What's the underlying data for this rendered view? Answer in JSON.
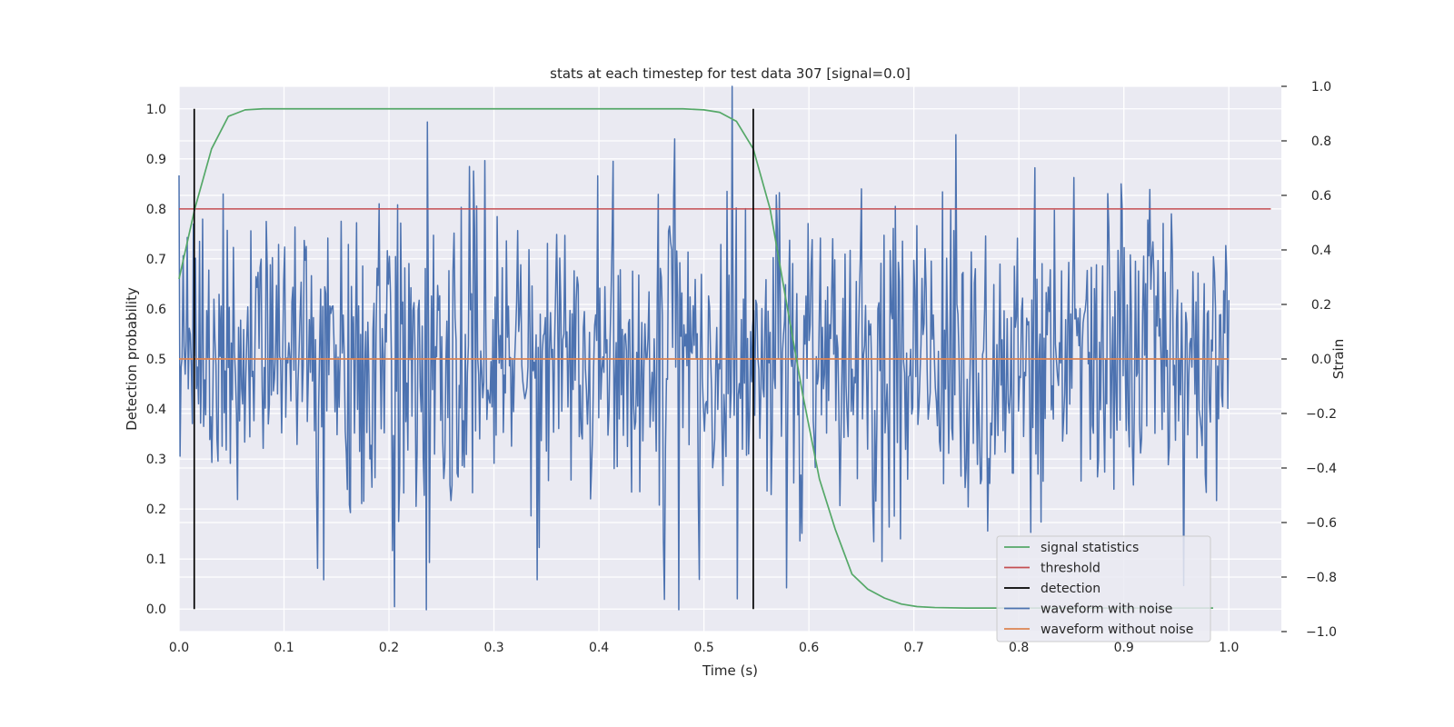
{
  "chart_data": {
    "type": "line",
    "title": "stats at each timestep for test data 307 [signal=0.0]",
    "xlabel": "Time (s)",
    "ylabel_left": "Detection probability",
    "ylabel_right": "Strain",
    "xlim": [
      0.0,
      1.05
    ],
    "ylim_left": [
      -0.045,
      1.045
    ],
    "ylim_right": [
      -1.0,
      1.0
    ],
    "x_ticks": [
      0.0,
      0.1,
      0.2,
      0.3,
      0.4,
      0.5,
      0.6,
      0.7,
      0.8,
      0.9,
      1.0
    ],
    "x_tick_labels": [
      "0.0",
      "0.1",
      "0.2",
      "0.3",
      "0.4",
      "0.5",
      "0.6",
      "0.7",
      "0.8",
      "0.9",
      "1.0"
    ],
    "y_left_ticks": [
      0.0,
      0.1,
      0.2,
      0.3,
      0.4,
      0.5,
      0.6,
      0.7,
      0.8,
      0.9,
      1.0
    ],
    "y_left_tick_labels": [
      "0.0",
      "0.1",
      "0.2",
      "0.3",
      "0.4",
      "0.5",
      "0.6",
      "0.7",
      "0.8",
      "0.9",
      "1.0"
    ],
    "y_right_ticks": [
      -1.0,
      -0.8,
      -0.6,
      -0.4,
      -0.2,
      0.0,
      0.2,
      0.4,
      0.6,
      0.8,
      1.0
    ],
    "y_right_tick_labels": [
      "−1.0",
      "−0.8",
      "−0.6",
      "−0.4",
      "−0.2",
      "0.0",
      "0.2",
      "0.4",
      "0.6",
      "0.8",
      "1.0"
    ],
    "grid": true,
    "legend_position": "lower-right",
    "series": [
      {
        "name": "signal statistics",
        "axis": "left",
        "color": "#55a868",
        "x": [
          0.0,
          0.015,
          0.031,
          0.047,
          0.063,
          0.08,
          0.1,
          0.2,
          0.3,
          0.4,
          0.48,
          0.5,
          0.515,
          0.531,
          0.547,
          0.563,
          0.578,
          0.594,
          0.61,
          0.625,
          0.641,
          0.656,
          0.672,
          0.688,
          0.703,
          0.72,
          0.75,
          0.8,
          0.9,
          0.985
        ],
        "y": [
          0.66,
          0.8,
          0.92,
          0.985,
          0.998,
          1.0,
          1.0,
          1.0,
          1.0,
          1.0,
          1.0,
          0.998,
          0.993,
          0.975,
          0.92,
          0.8,
          0.62,
          0.43,
          0.26,
          0.16,
          0.07,
          0.04,
          0.022,
          0.01,
          0.005,
          0.003,
          0.002,
          0.002,
          0.002,
          0.002
        ]
      },
      {
        "name": "threshold",
        "axis": "left",
        "color": "#c44e52",
        "x": [
          0.0,
          1.04
        ],
        "y": [
          0.8,
          0.8
        ]
      },
      {
        "name": "waveform with noise",
        "axis": "right",
        "color": "#4c72b0",
        "x_start": 0.0,
        "x_end": 1.0,
        "seed": 307,
        "num_points": 1024,
        "noise_std": 0.3,
        "clip": [
          -0.92,
          1.0
        ]
      },
      {
        "name": "waveform without noise",
        "axis": "right",
        "color": "#dd8452",
        "x": [
          0.0,
          1.0
        ],
        "y": [
          0.0,
          0.0
        ]
      }
    ],
    "detections": {
      "name": "detection",
      "color": "#000000",
      "x": [
        0.0145,
        0.547
      ],
      "y_range": [
        0.0,
        1.0
      ]
    }
  }
}
